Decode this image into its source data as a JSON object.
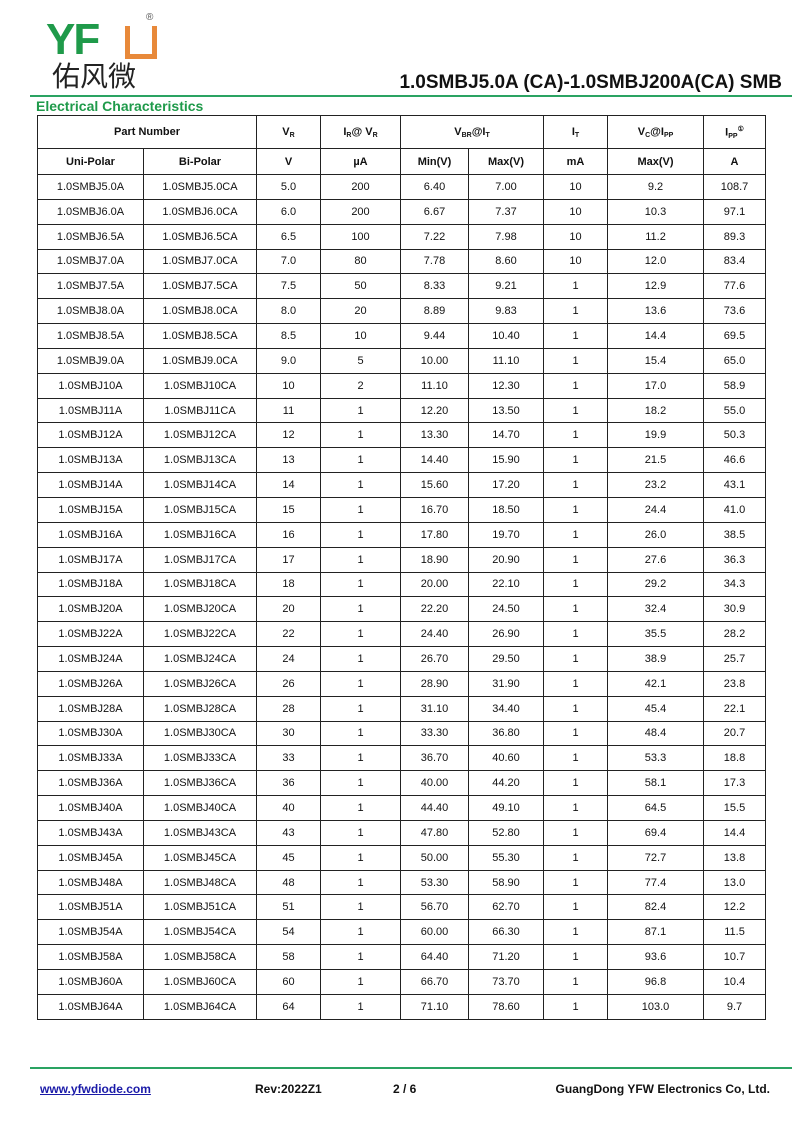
{
  "logo": {
    "latin": "YF",
    "cn": "佑风微",
    "reg": "®"
  },
  "title": "1.0SMBJ5.0A (CA)-1.0SMBJ200A(CA)  SMB",
  "section": "Electrical Characteristics",
  "header": {
    "part_number": "Part Number",
    "vr": {
      "main": "V",
      "sub": "R"
    },
    "ir": {
      "main": "I",
      "sub": "R",
      "rest": "@ V",
      "sub2": "R"
    },
    "vbr": {
      "main": "V",
      "sub": "BR",
      "rest": "@I",
      "sub2": "T"
    },
    "it": {
      "main": "I",
      "sub": "T"
    },
    "vc": {
      "main": "V",
      "sub": "C",
      "rest": "@I",
      "sub2": "PP"
    },
    "ipp": {
      "main": "I",
      "sub": "PP",
      "note": "①"
    },
    "units": [
      "Uni-Polar",
      "Bi-Polar",
      "V",
      "µA",
      "Min(V)",
      "Max(V)",
      "mA",
      "Max(V)",
      "A"
    ]
  },
  "rows": [
    [
      "1.0SMBJ5.0A",
      "1.0SMBJ5.0CA",
      "5.0",
      "200",
      "6.40",
      "7.00",
      "10",
      "9.2",
      "108.7"
    ],
    [
      "1.0SMBJ6.0A",
      "1.0SMBJ6.0CA",
      "6.0",
      "200",
      "6.67",
      "7.37",
      "10",
      "10.3",
      "97.1"
    ],
    [
      "1.0SMBJ6.5A",
      "1.0SMBJ6.5CA",
      "6.5",
      "100",
      "7.22",
      "7.98",
      "10",
      "11.2",
      "89.3"
    ],
    [
      "1.0SMBJ7.0A",
      "1.0SMBJ7.0CA",
      "7.0",
      "80",
      "7.78",
      "8.60",
      "10",
      "12.0",
      "83.4"
    ],
    [
      "1.0SMBJ7.5A",
      "1.0SMBJ7.5CA",
      "7.5",
      "50",
      "8.33",
      "9.21",
      "1",
      "12.9",
      "77.6"
    ],
    [
      "1.0SMBJ8.0A",
      "1.0SMBJ8.0CA",
      "8.0",
      "20",
      "8.89",
      "9.83",
      "1",
      "13.6",
      "73.6"
    ],
    [
      "1.0SMBJ8.5A",
      "1.0SMBJ8.5CA",
      "8.5",
      "10",
      "9.44",
      "10.40",
      "1",
      "14.4",
      "69.5"
    ],
    [
      "1.0SMBJ9.0A",
      "1.0SMBJ9.0CA",
      "9.0",
      "5",
      "10.00",
      "11.10",
      "1",
      "15.4",
      "65.0"
    ],
    [
      "1.0SMBJ10A",
      "1.0SMBJ10CA",
      "10",
      "2",
      "11.10",
      "12.30",
      "1",
      "17.0",
      "58.9"
    ],
    [
      "1.0SMBJ11A",
      "1.0SMBJ11CA",
      "11",
      "1",
      "12.20",
      "13.50",
      "1",
      "18.2",
      "55.0"
    ],
    [
      "1.0SMBJ12A",
      "1.0SMBJ12CA",
      "12",
      "1",
      "13.30",
      "14.70",
      "1",
      "19.9",
      "50.3"
    ],
    [
      "1.0SMBJ13A",
      "1.0SMBJ13CA",
      "13",
      "1",
      "14.40",
      "15.90",
      "1",
      "21.5",
      "46.6"
    ],
    [
      "1.0SMBJ14A",
      "1.0SMBJ14CA",
      "14",
      "1",
      "15.60",
      "17.20",
      "1",
      "23.2",
      "43.1"
    ],
    [
      "1.0SMBJ15A",
      "1.0SMBJ15CA",
      "15",
      "1",
      "16.70",
      "18.50",
      "1",
      "24.4",
      "41.0"
    ],
    [
      "1.0SMBJ16A",
      "1.0SMBJ16CA",
      "16",
      "1",
      "17.80",
      "19.70",
      "1",
      "26.0",
      "38.5"
    ],
    [
      "1.0SMBJ17A",
      "1.0SMBJ17CA",
      "17",
      "1",
      "18.90",
      "20.90",
      "1",
      "27.6",
      "36.3"
    ],
    [
      "1.0SMBJ18A",
      "1.0SMBJ18CA",
      "18",
      "1",
      "20.00",
      "22.10",
      "1",
      "29.2",
      "34.3"
    ],
    [
      "1.0SMBJ20A",
      "1.0SMBJ20CA",
      "20",
      "1",
      "22.20",
      "24.50",
      "1",
      "32.4",
      "30.9"
    ],
    [
      "1.0SMBJ22A",
      "1.0SMBJ22CA",
      "22",
      "1",
      "24.40",
      "26.90",
      "1",
      "35.5",
      "28.2"
    ],
    [
      "1.0SMBJ24A",
      "1.0SMBJ24CA",
      "24",
      "1",
      "26.70",
      "29.50",
      "1",
      "38.9",
      "25.7"
    ],
    [
      "1.0SMBJ26A",
      "1.0SMBJ26CA",
      "26",
      "1",
      "28.90",
      "31.90",
      "1",
      "42.1",
      "23.8"
    ],
    [
      "1.0SMBJ28A",
      "1.0SMBJ28CA",
      "28",
      "1",
      "31.10",
      "34.40",
      "1",
      "45.4",
      "22.1"
    ],
    [
      "1.0SMBJ30A",
      "1.0SMBJ30CA",
      "30",
      "1",
      "33.30",
      "36.80",
      "1",
      "48.4",
      "20.7"
    ],
    [
      "1.0SMBJ33A",
      "1.0SMBJ33CA",
      "33",
      "1",
      "36.70",
      "40.60",
      "1",
      "53.3",
      "18.8"
    ],
    [
      "1.0SMBJ36A",
      "1.0SMBJ36CA",
      "36",
      "1",
      "40.00",
      "44.20",
      "1",
      "58.1",
      "17.3"
    ],
    [
      "1.0SMBJ40A",
      "1.0SMBJ40CA",
      "40",
      "1",
      "44.40",
      "49.10",
      "1",
      "64.5",
      "15.5"
    ],
    [
      "1.0SMBJ43A",
      "1.0SMBJ43CA",
      "43",
      "1",
      "47.80",
      "52.80",
      "1",
      "69.4",
      "14.4"
    ],
    [
      "1.0SMBJ45A",
      "1.0SMBJ45CA",
      "45",
      "1",
      "50.00",
      "55.30",
      "1",
      "72.7",
      "13.8"
    ],
    [
      "1.0SMBJ48A",
      "1.0SMBJ48CA",
      "48",
      "1",
      "53.30",
      "58.90",
      "1",
      "77.4",
      "13.0"
    ],
    [
      "1.0SMBJ51A",
      "1.0SMBJ51CA",
      "51",
      "1",
      "56.70",
      "62.70",
      "1",
      "82.4",
      "12.2"
    ],
    [
      "1.0SMBJ54A",
      "1.0SMBJ54CA",
      "54",
      "1",
      "60.00",
      "66.30",
      "1",
      "87.1",
      "11.5"
    ],
    [
      "1.0SMBJ58A",
      "1.0SMBJ58CA",
      "58",
      "1",
      "64.40",
      "71.20",
      "1",
      "93.6",
      "10.7"
    ],
    [
      "1.0SMBJ60A",
      "1.0SMBJ60CA",
      "60",
      "1",
      "66.70",
      "73.70",
      "1",
      "96.8",
      "10.4"
    ],
    [
      "1.0SMBJ64A",
      "1.0SMBJ64CA",
      "64",
      "1",
      "71.10",
      "78.60",
      "1",
      "103.0",
      "9.7"
    ]
  ],
  "footer": {
    "website": "www.yfwdiode.com",
    "rev": "Rev:2022Z1",
    "page": "2 / 6",
    "company": "GuangDong YFW Electronics Co, Ltd."
  },
  "colors": {
    "brand_green": "#1f9a4a",
    "brand_orange": "#e8893a",
    "link": "#1a1aa8"
  }
}
